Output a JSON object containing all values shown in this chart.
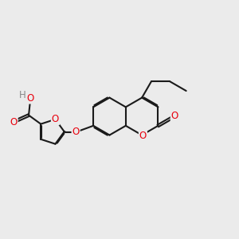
{
  "bg_color": "#ebebeb",
  "bond_color": "#1a1a1a",
  "o_color": "#e8000d",
  "h_color": "#888888",
  "line_width": 1.5,
  "dbo": 0.045,
  "figsize": [
    3.0,
    3.0
  ],
  "dpi": 100,
  "xlim": [
    -1.0,
    8.5
  ],
  "ylim": [
    -2.5,
    4.0
  ]
}
